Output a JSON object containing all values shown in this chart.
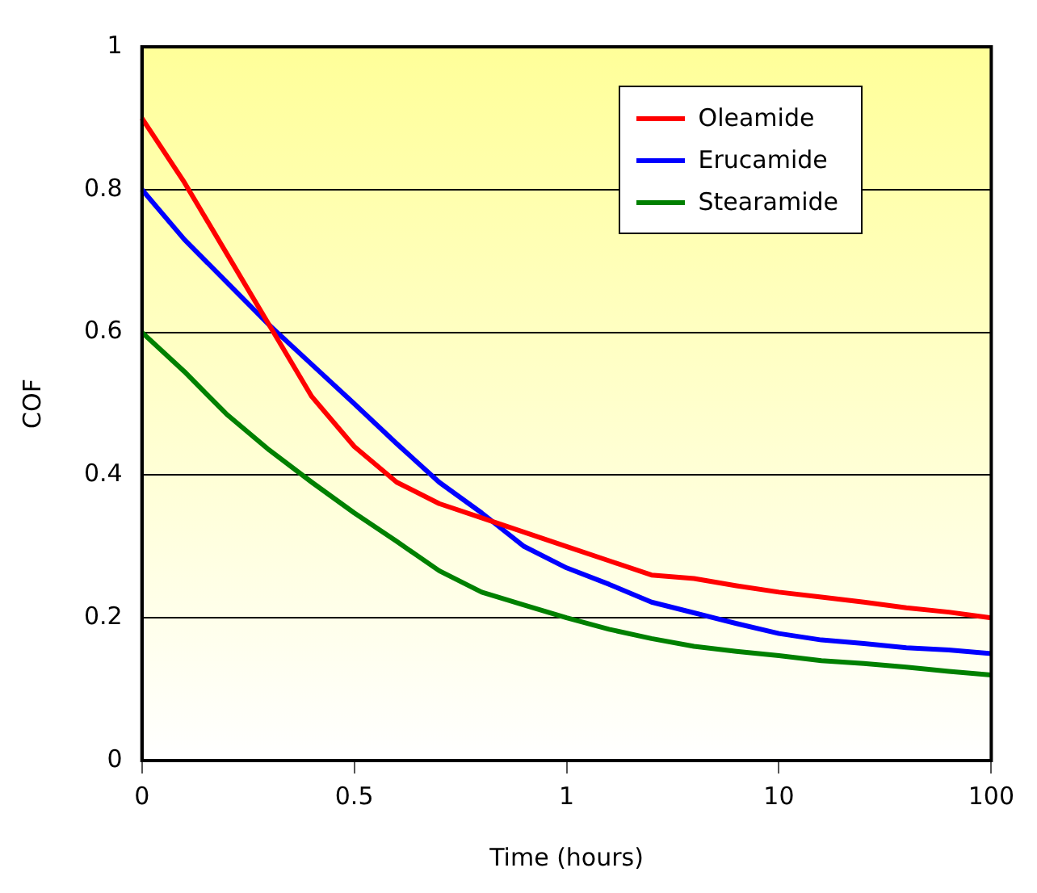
{
  "chart_data": {
    "type": "line",
    "xlabel": "Time (hours)",
    "ylabel": "COF",
    "categories": [
      "0",
      null,
      null,
      null,
      null,
      "0.5",
      null,
      null,
      null,
      null,
      "1",
      null,
      null,
      null,
      null,
      "10",
      null,
      null,
      null,
      null,
      "100"
    ],
    "ylim": [
      0,
      1
    ],
    "yticks": [
      0,
      0.2,
      0.4,
      0.6,
      0.8,
      1
    ],
    "grid": "y",
    "legend": "top right",
    "marker": "none",
    "line_style": "solid",
    "series": [
      {
        "name": "Oleamide",
        "color": "#ff0000",
        "values": [
          0.9,
          0.81,
          0.71,
          0.61,
          0.51,
          0.44,
          0.39,
          0.36,
          0.34,
          0.32,
          0.3,
          0.28,
          0.26,
          0.255,
          0.245,
          0.236,
          0.229,
          0.222,
          0.214,
          0.208,
          0.2
        ]
      },
      {
        "name": "Erucamide",
        "color": "#0000ff",
        "values": [
          0.8,
          0.73,
          0.67,
          0.61,
          0.555,
          0.5,
          0.444,
          0.39,
          0.347,
          0.3,
          0.27,
          0.247,
          0.222,
          0.207,
          0.192,
          0.178,
          0.169,
          0.164,
          0.158,
          0.155,
          0.15
        ]
      },
      {
        "name": "Stearamide",
        "color": "#008000",
        "values": [
          0.6,
          0.545,
          0.485,
          0.435,
          0.39,
          0.347,
          0.307,
          0.266,
          0.236,
          0.218,
          0.2,
          0.184,
          0.171,
          0.16,
          0.153,
          0.147,
          0.14,
          0.136,
          0.131,
          0.125,
          0.12
        ]
      }
    ]
  }
}
